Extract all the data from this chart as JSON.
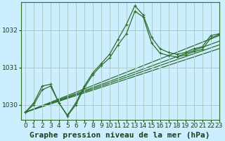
{
  "title": "Graphe pression niveau de la mer (hPa)",
  "bg_color": "#cceeff",
  "grid_color": "#aacccc",
  "line_color": "#2d6e2d",
  "xlim": [
    -0.5,
    23
  ],
  "ylim": [
    1029.6,
    1032.75
  ],
  "yticks": [
    1030,
    1031,
    1032
  ],
  "xticks": [
    0,
    1,
    2,
    3,
    4,
    5,
    6,
    7,
    8,
    9,
    10,
    11,
    12,
    13,
    14,
    15,
    16,
    17,
    18,
    19,
    20,
    21,
    22,
    23
  ],
  "wavy_series": [
    [
      1029.8,
      1030.0,
      1030.4,
      1030.5,
      1030.05,
      1029.72,
      1030.05,
      1030.5,
      1030.85,
      1031.1,
      1031.35,
      1031.75,
      1032.15,
      1032.65,
      1032.4,
      1031.8,
      1031.5,
      1031.4,
      1031.35,
      1031.4,
      1031.5,
      1031.55,
      1031.85,
      1031.9
    ],
    [
      1029.8,
      1030.05,
      1030.5,
      1030.55,
      1030.05,
      1029.7,
      1030.0,
      1030.45,
      1030.8,
      1031.05,
      1031.25,
      1031.6,
      1031.9,
      1032.5,
      1032.35,
      1031.65,
      1031.38,
      1031.32,
      1031.28,
      1031.33,
      1031.42,
      1031.48,
      1031.78,
      1031.88
    ]
  ],
  "straight_series": [
    [
      [
        0,
        1029.8
      ],
      [
        23,
        1031.85
      ]
    ],
    [
      [
        0,
        1029.8
      ],
      [
        23,
        1031.7
      ]
    ],
    [
      [
        0,
        1029.8
      ],
      [
        23,
        1031.6
      ]
    ],
    [
      [
        0,
        1029.8
      ],
      [
        23,
        1031.5
      ]
    ]
  ],
  "title_fontsize": 8,
  "tick_fontsize": 6.5,
  "marker": "+",
  "marker_size": 3.5,
  "line_width": 0.9
}
